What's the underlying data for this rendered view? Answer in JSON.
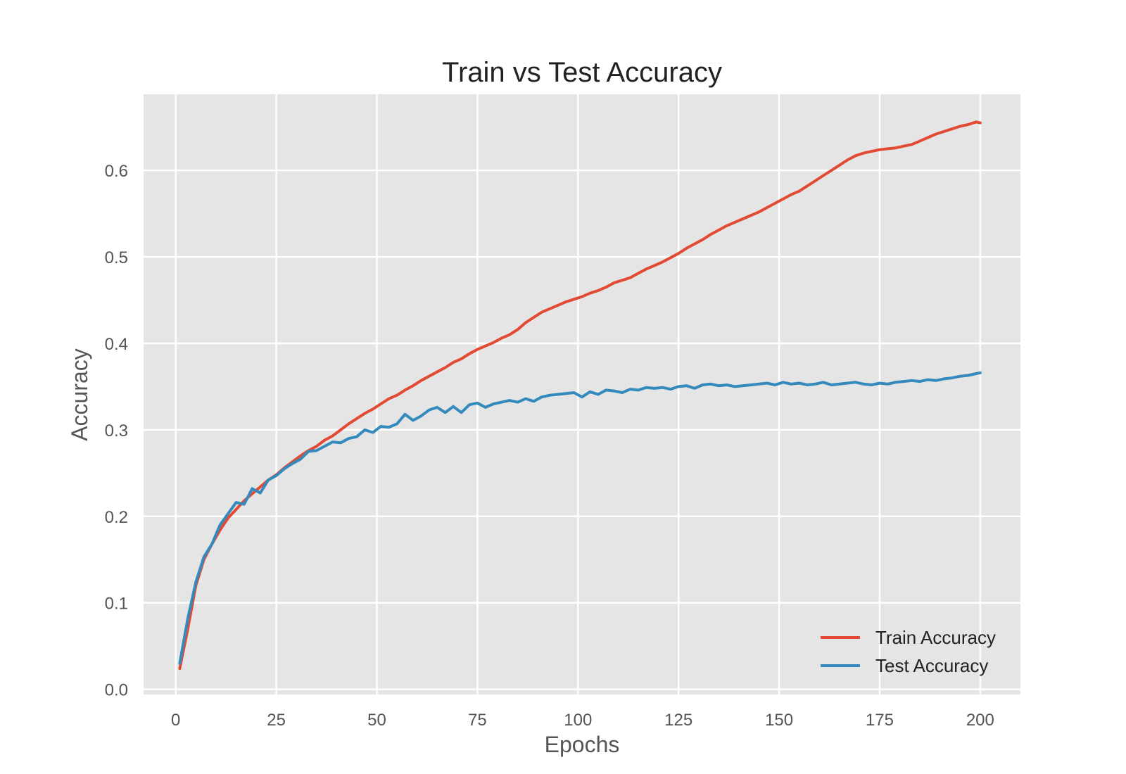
{
  "chart_data": {
    "type": "line",
    "title": "Train vs Test Accuracy",
    "xlabel": "Epochs",
    "ylabel": "Accuracy",
    "xlim": [
      -8,
      210
    ],
    "ylim": [
      -0.006,
      0.688
    ],
    "xticks": [
      0,
      25,
      50,
      75,
      100,
      125,
      150,
      175,
      200
    ],
    "yticks": [
      0.0,
      0.1,
      0.2,
      0.3,
      0.4,
      0.5,
      0.6
    ],
    "ytick_labels": [
      "0.0",
      "0.1",
      "0.2",
      "0.3",
      "0.4",
      "0.5",
      "0.6"
    ],
    "grid": true,
    "legend_position": "lower-right",
    "series": [
      {
        "name": "Train Accuracy",
        "color": "#e24a33",
        "x": [
          1,
          3,
          5,
          7,
          9,
          11,
          13,
          15,
          17,
          19,
          21,
          23,
          25,
          27,
          29,
          31,
          33,
          35,
          37,
          39,
          41,
          43,
          45,
          47,
          49,
          51,
          53,
          55,
          57,
          59,
          61,
          63,
          65,
          67,
          69,
          71,
          73,
          75,
          77,
          79,
          81,
          83,
          85,
          87,
          89,
          91,
          93,
          95,
          97,
          99,
          101,
          103,
          105,
          107,
          109,
          111,
          113,
          115,
          117,
          119,
          121,
          123,
          125,
          127,
          129,
          131,
          133,
          135,
          137,
          139,
          141,
          143,
          145,
          147,
          149,
          151,
          153,
          155,
          157,
          159,
          161,
          163,
          165,
          167,
          169,
          171,
          173,
          175,
          177,
          179,
          181,
          183,
          185,
          187,
          189,
          191,
          193,
          195,
          197,
          199,
          200
        ],
        "y": [
          0.024,
          0.07,
          0.12,
          0.15,
          0.168,
          0.184,
          0.198,
          0.208,
          0.218,
          0.226,
          0.234,
          0.242,
          0.248,
          0.256,
          0.263,
          0.27,
          0.276,
          0.281,
          0.288,
          0.293,
          0.3,
          0.307,
          0.313,
          0.319,
          0.324,
          0.33,
          0.336,
          0.34,
          0.346,
          0.351,
          0.357,
          0.362,
          0.367,
          0.372,
          0.378,
          0.382,
          0.388,
          0.393,
          0.397,
          0.401,
          0.406,
          0.41,
          0.416,
          0.424,
          0.43,
          0.436,
          0.44,
          0.444,
          0.448,
          0.451,
          0.454,
          0.458,
          0.461,
          0.465,
          0.47,
          0.473,
          0.476,
          0.481,
          0.486,
          0.49,
          0.494,
          0.499,
          0.504,
          0.51,
          0.515,
          0.52,
          0.526,
          0.531,
          0.536,
          0.54,
          0.544,
          0.548,
          0.552,
          0.557,
          0.562,
          0.567,
          0.572,
          0.576,
          0.582,
          0.588,
          0.594,
          0.6,
          0.606,
          0.612,
          0.617,
          0.62,
          0.622,
          0.624,
          0.625,
          0.626,
          0.628,
          0.63,
          0.634,
          0.638,
          0.642,
          0.645,
          0.648,
          0.651,
          0.653,
          0.656,
          0.655
        ]
      },
      {
        "name": "Test Accuracy",
        "color": "#348abd",
        "x": [
          1,
          3,
          5,
          7,
          9,
          11,
          13,
          15,
          17,
          19,
          21,
          23,
          25,
          27,
          29,
          31,
          33,
          35,
          37,
          39,
          41,
          43,
          45,
          47,
          49,
          51,
          53,
          55,
          57,
          59,
          61,
          63,
          65,
          67,
          69,
          71,
          73,
          75,
          77,
          79,
          81,
          83,
          85,
          87,
          89,
          91,
          93,
          95,
          97,
          99,
          101,
          103,
          105,
          107,
          109,
          111,
          113,
          115,
          117,
          119,
          121,
          123,
          125,
          127,
          129,
          131,
          133,
          135,
          137,
          139,
          141,
          143,
          145,
          147,
          149,
          151,
          153,
          155,
          157,
          159,
          161,
          163,
          165,
          167,
          169,
          171,
          173,
          175,
          177,
          179,
          181,
          183,
          185,
          187,
          189,
          191,
          193,
          195,
          197,
          199,
          200
        ],
        "y": [
          0.03,
          0.082,
          0.124,
          0.153,
          0.168,
          0.19,
          0.203,
          0.216,
          0.214,
          0.232,
          0.227,
          0.242,
          0.247,
          0.255,
          0.261,
          0.266,
          0.275,
          0.276,
          0.281,
          0.286,
          0.285,
          0.29,
          0.292,
          0.3,
          0.297,
          0.304,
          0.303,
          0.307,
          0.318,
          0.311,
          0.316,
          0.323,
          0.326,
          0.32,
          0.327,
          0.32,
          0.329,
          0.331,
          0.326,
          0.33,
          0.332,
          0.334,
          0.332,
          0.336,
          0.333,
          0.338,
          0.34,
          0.341,
          0.342,
          0.343,
          0.338,
          0.344,
          0.341,
          0.346,
          0.345,
          0.343,
          0.347,
          0.346,
          0.349,
          0.348,
          0.349,
          0.347,
          0.35,
          0.351,
          0.348,
          0.352,
          0.353,
          0.351,
          0.352,
          0.35,
          0.351,
          0.352,
          0.353,
          0.354,
          0.352,
          0.355,
          0.353,
          0.354,
          0.352,
          0.353,
          0.355,
          0.352,
          0.353,
          0.354,
          0.355,
          0.353,
          0.352,
          0.354,
          0.353,
          0.355,
          0.356,
          0.357,
          0.356,
          0.358,
          0.357,
          0.359,
          0.36,
          0.362,
          0.363,
          0.365,
          0.366
        ]
      }
    ]
  }
}
